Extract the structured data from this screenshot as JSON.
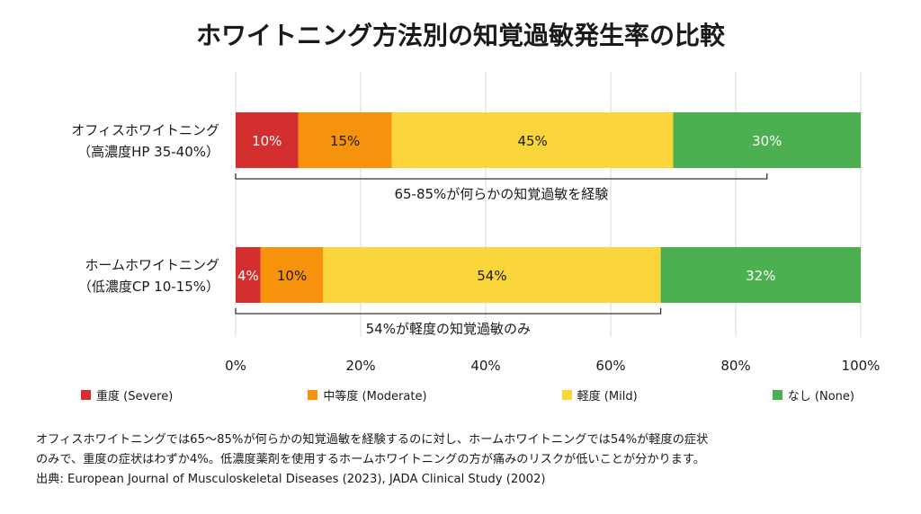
{
  "chart_data": {
    "type": "bar",
    "orientation": "horizontal",
    "stacked": true,
    "title": "ホワイトニング方法別の知覚過敏発生率の比較",
    "categories": [
      [
        "オフィスホワイトニング",
        "（高濃度HP 35-40%）"
      ],
      [
        "ホームホワイトニング",
        "（低濃度CP 10-15%）"
      ]
    ],
    "series": [
      {
        "name": "重度 (Severe)",
        "color": "#d32f2f",
        "label_color": "#ffffff",
        "values": [
          10,
          4
        ]
      },
      {
        "name": "中等度 (Moderate)",
        "color": "#f7920c",
        "label_color": "#1a1a1a",
        "values": [
          15,
          10
        ]
      },
      {
        "name": "軽度 (Mild)",
        "color": "#fad63b",
        "label_color": "#1a1a1a",
        "values": [
          45,
          54
        ]
      },
      {
        "name": "なし (None)",
        "color": "#4caf50",
        "label_color": "#ffffff",
        "values": [
          30,
          32
        ]
      }
    ],
    "data_labels": [
      [
        "10%",
        "15%",
        "45%",
        "30%"
      ],
      [
        "4%",
        "10%",
        "54%",
        "32%"
      ]
    ],
    "xlim": [
      0,
      100
    ],
    "xticks": [
      "0%",
      "20%",
      "40%",
      "60%",
      "80%",
      "100%"
    ],
    "grid": true,
    "legend_position": "bottom",
    "annotations": [
      {
        "category": 0,
        "from": 0,
        "to": 85,
        "text": "65-85%が何らかの知覚過敏を経験"
      },
      {
        "category": 1,
        "from": 0,
        "to": 68,
        "text": "54%が軽度の知覚過敏のみ"
      }
    ]
  },
  "note": {
    "lines": [
      "オフィスホワイトニングでは65〜85%が何らかの知覚過敏を経験するのに対し、ホームホワイトニングでは54%が軽度の症状",
      "のみで、重度の症状はわずか4%。低濃度薬剤を使用するホームホワイトニングの方が痛みのリスクが低いことが分かります。",
      "出典: European Journal of Musculoskeletal Diseases (2023), JADA Clinical Study (2002)"
    ]
  }
}
